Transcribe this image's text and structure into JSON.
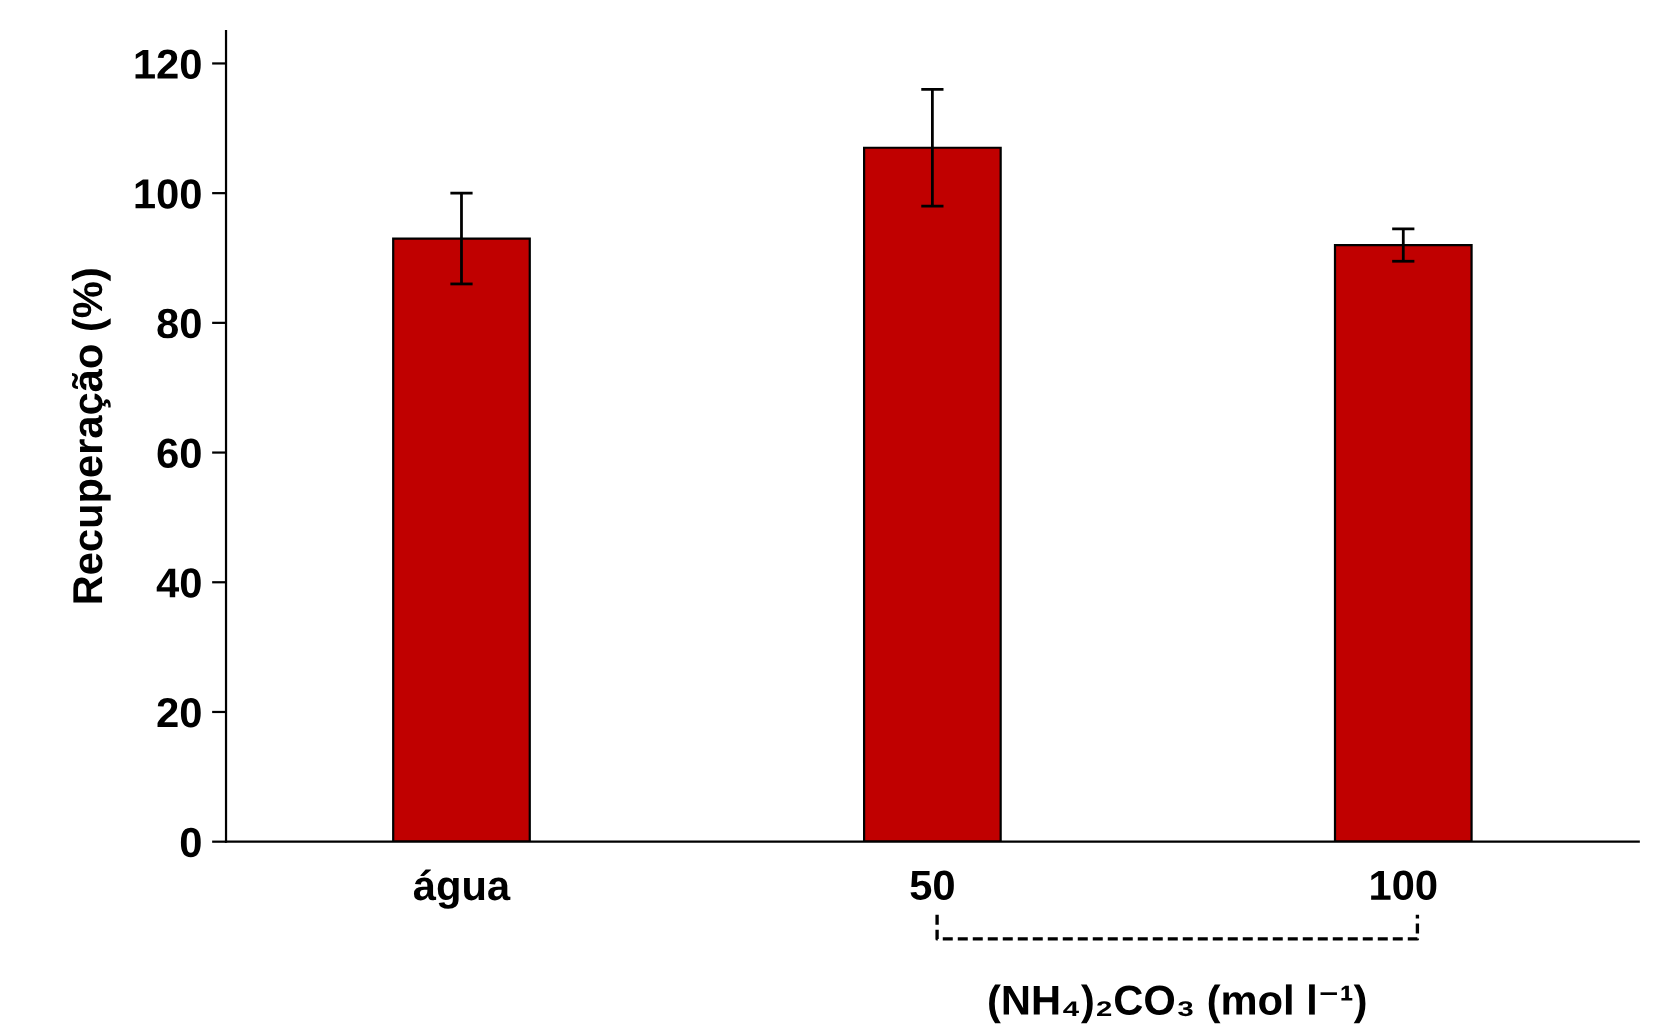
{
  "chart_data": {
    "type": "bar",
    "ylabel": "Recuperação (%)",
    "categories": [
      "água",
      "50",
      "100"
    ],
    "values": [
      93,
      107,
      92
    ],
    "errors": [
      7,
      9,
      2.5
    ],
    "color": "#c00000",
    "ylim": [
      0,
      125
    ],
    "yticks": [
      0,
      20,
      40,
      60,
      80,
      100,
      120
    ],
    "grid": false,
    "annotations": [
      "(NH₄)₂CO₃ (mol l⁻¹)"
    ]
  }
}
